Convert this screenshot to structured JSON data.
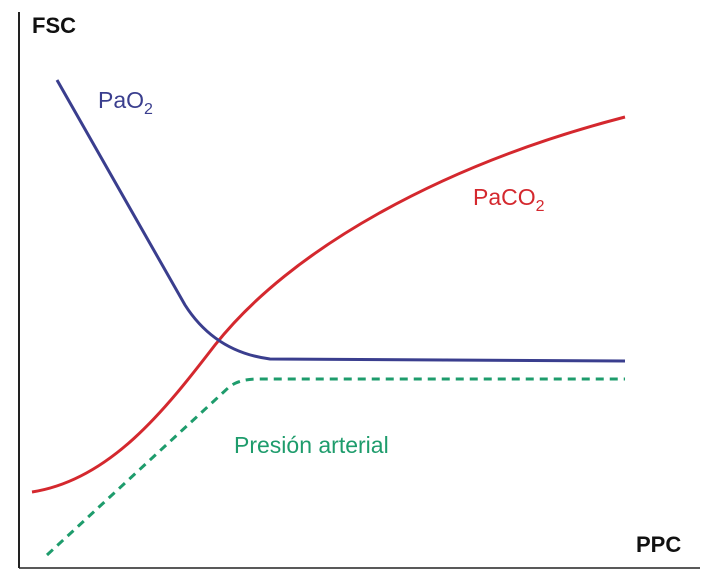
{
  "axes": {
    "y_label": "FSC",
    "x_label": "PPC"
  },
  "curves": [
    {
      "label": "PaO",
      "subscript": "2"
    },
    {
      "label": "PaCO",
      "subscript": "2"
    },
    {
      "label": "Presión arterial"
    }
  ]
}
